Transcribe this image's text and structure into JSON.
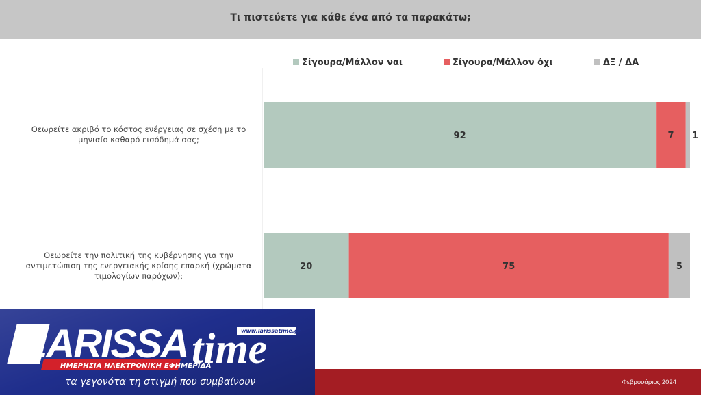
{
  "header": {
    "question": "Τι πιστεύετε για κάθε ένα από τα παρακάτω;"
  },
  "legend": [
    {
      "label": "Σίγουρα/Μάλλον ναι",
      "color": "#b3c9be"
    },
    {
      "label": "Σίγουρα/Μάλλον όχι",
      "color": "#e65f60"
    },
    {
      "label": "ΔΞ / ΔΑ",
      "color": "#c0c0c0"
    }
  ],
  "chart_data": {
    "type": "bar",
    "orientation": "horizontal",
    "stacked": true,
    "categories": [
      "Θεωρείτε ακριβό το κόστος ενέργειας σε σχέση με το μηνιαίο καθαρό εισόδημά σας;",
      "Θεωρείτε την πολιτική της κυβέρνησης για την αντιμετώπιση της ενεργειακής κρίσης επαρκή (χρώματα τιμολογίων παρόχων);"
    ],
    "series": [
      {
        "name": "Σίγουρα/Μάλλον ναι",
        "values": [
          92,
          20
        ],
        "color": "#b3c9be"
      },
      {
        "name": "Σίγουρα/Μάλλον όχι",
        "values": [
          7,
          75
        ],
        "color": "#e65f60"
      },
      {
        "name": "ΔΞ / ΔΑ",
        "values": [
          1,
          5
        ],
        "color": "#c0c0c0"
      }
    ],
    "xlim": [
      0,
      100
    ],
    "grid": false,
    "legend_position": "top"
  },
  "footer": {
    "date": "Φεβρουάριος 2024"
  },
  "logo": {
    "brand_1": "LARISSA",
    "brand_2": "time",
    "website": "www.larissatime.gr",
    "subtitle": "ΗΜΕΡΗΣΙΑ ΗΛΕΚΤΡΟΝΙΚΗ ΕΦΗΜΕΡΙΔΑ",
    "tagline": "τα γεγονότα τη στιγμή που συμβαίνουν"
  }
}
